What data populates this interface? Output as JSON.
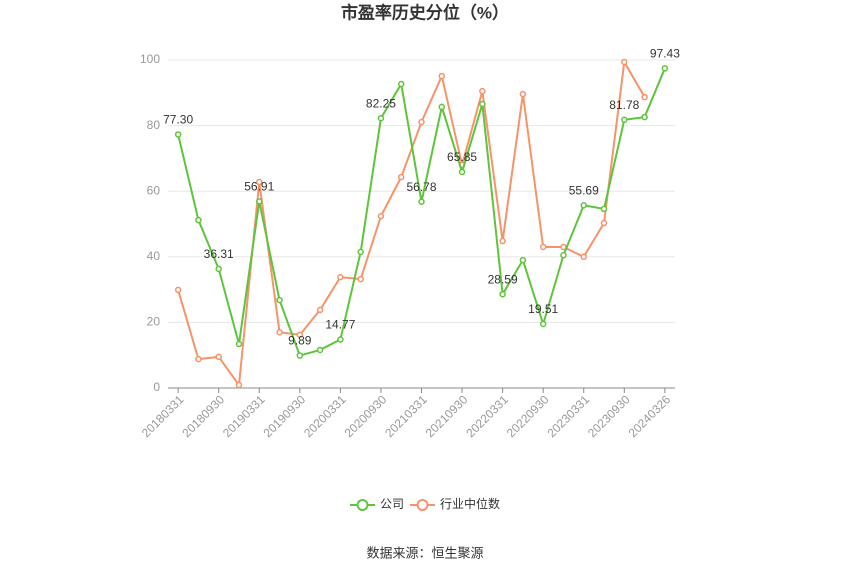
{
  "chart_data": {
    "type": "line",
    "title": "市盈率历史分位（%）",
    "source": "数据来源：恒生聚源",
    "categories": [
      "20180331",
      null,
      "20180930",
      null,
      "20190331",
      null,
      "20190930",
      null,
      "20200331",
      null,
      "20200930",
      null,
      "20210331",
      null,
      "20210930",
      null,
      "20220331",
      null,
      "20220930",
      null,
      "20230331",
      null,
      "20230930",
      null,
      "20240326"
    ],
    "series": [
      {
        "name": "公司",
        "color": "#5ec43c",
        "values": [
          77.3,
          51.2,
          36.31,
          13.4,
          56.91,
          26.8,
          9.89,
          11.6,
          14.77,
          41.5,
          82.25,
          92.7,
          56.78,
          85.7,
          65.85,
          86.6,
          28.59,
          39,
          19.51,
          40.5,
          55.69,
          54.6,
          81.78,
          82.6,
          97.43
        ],
        "value_labels": [
          "77.30",
          null,
          "36.31",
          null,
          "56.91",
          null,
          "9.89",
          null,
          "14.77",
          null,
          "82.25",
          null,
          "56.78",
          null,
          "65.85",
          null,
          "28.59",
          null,
          "19.51",
          null,
          "55.69",
          null,
          "81.78",
          null,
          "97.43"
        ]
      },
      {
        "name": "行业中位数",
        "color": "#f5936a",
        "values": [
          29.9,
          8.8,
          9.5,
          0.9,
          62.8,
          17,
          16.2,
          23.8,
          33.8,
          33.2,
          52.4,
          64.3,
          81.1,
          95.1,
          68,
          90.5,
          44.8,
          89.6,
          43,
          43,
          40,
          50.3,
          99.4,
          88.7,
          null
        ]
      }
    ],
    "ylim": [
      0,
      100
    ],
    "yticks": [
      0,
      20,
      40,
      60,
      80,
      100
    ],
    "grid": true,
    "legend": "bottom"
  }
}
